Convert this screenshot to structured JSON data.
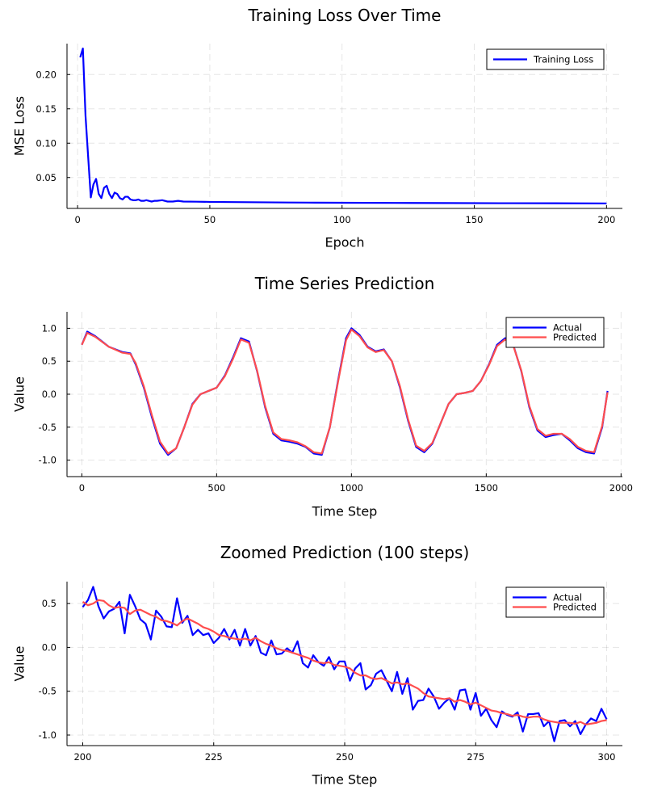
{
  "chart_data": [
    {
      "type": "line",
      "title": "Training Loss Over Time",
      "xlabel": "Epoch",
      "ylabel": "MSE Loss",
      "xlim": [
        -4,
        206
      ],
      "ylim": [
        0.005,
        0.245
      ],
      "xticks": [
        0,
        50,
        100,
        150,
        200
      ],
      "xtick_labels": [
        "0",
        "50",
        "100",
        "150",
        "200"
      ],
      "yticks": [
        0.05,
        0.1,
        0.15,
        0.2
      ],
      "ytick_labels": [
        "0.05",
        "0.10",
        "0.15",
        "0.20"
      ],
      "grid": true,
      "legend_position": "top-right",
      "series": [
        {
          "name": "Training Loss",
          "color": "#0000ff",
          "x": [
            1,
            2,
            3,
            4,
            5,
            6,
            7,
            8,
            9,
            10,
            11,
            12,
            13,
            14,
            15,
            16,
            17,
            18,
            19,
            20,
            21,
            22,
            23,
            24,
            25,
            26,
            27,
            28,
            29,
            30,
            32,
            34,
            36,
            38,
            40,
            45,
            50,
            60,
            70,
            80,
            90,
            100,
            120,
            140,
            160,
            180,
            200
          ],
          "y": [
            0.225,
            0.238,
            0.14,
            0.08,
            0.021,
            0.04,
            0.048,
            0.026,
            0.02,
            0.035,
            0.038,
            0.026,
            0.02,
            0.028,
            0.026,
            0.02,
            0.018,
            0.022,
            0.022,
            0.018,
            0.017,
            0.017,
            0.018,
            0.016,
            0.016,
            0.017,
            0.016,
            0.015,
            0.016,
            0.016,
            0.017,
            0.015,
            0.015,
            0.016,
            0.015,
            0.0148,
            0.0145,
            0.0142,
            0.0139,
            0.0136,
            0.0134,
            0.0132,
            0.013,
            0.0128,
            0.0126,
            0.0125,
            0.0123
          ]
        }
      ]
    },
    {
      "type": "line",
      "title": "Time Series Prediction",
      "xlabel": "Time Step",
      "ylabel": "Value",
      "xlim": [
        -55,
        2005
      ],
      "ylim": [
        -1.25,
        1.25
      ],
      "xticks": [
        0,
        500,
        1000,
        1500,
        2000
      ],
      "xtick_labels": [
        "0",
        "500",
        "1000",
        "1500",
        "2000"
      ],
      "yticks": [
        -1.0,
        -0.5,
        0.0,
        0.5,
        1.0
      ],
      "ytick_labels": [
        "-1.0",
        "-0.5",
        "0.0",
        "0.5",
        "1.0"
      ],
      "grid": true,
      "legend_position": "top-right",
      "series": [
        {
          "name": "Actual",
          "color": "#0000ff",
          "x": [
            0,
            20,
            50,
            100,
            150,
            180,
            200,
            230,
            260,
            290,
            320,
            350,
            380,
            410,
            440,
            470,
            500,
            530,
            560,
            590,
            620,
            650,
            680,
            710,
            740,
            770,
            800,
            830,
            860,
            890,
            920,
            950,
            980,
            1000,
            1030,
            1060,
            1090,
            1120,
            1150,
            1180,
            1210,
            1240,
            1270,
            1300,
            1330,
            1360,
            1390,
            1420,
            1450,
            1480,
            1510,
            1540,
            1570,
            1600,
            1630,
            1660,
            1690,
            1720,
            1750,
            1780,
            1810,
            1840,
            1870,
            1900,
            1930,
            1950
          ],
          "y": [
            0.75,
            0.95,
            0.88,
            0.72,
            0.64,
            0.62,
            0.45,
            0.1,
            -0.35,
            -0.75,
            -0.92,
            -0.82,
            -0.5,
            -0.15,
            0.0,
            0.05,
            0.1,
            0.28,
            0.55,
            0.85,
            0.8,
            0.35,
            -0.2,
            -0.6,
            -0.7,
            -0.72,
            -0.75,
            -0.8,
            -0.9,
            -0.92,
            -0.5,
            0.2,
            0.85,
            1.0,
            0.9,
            0.72,
            0.65,
            0.68,
            0.5,
            0.1,
            -0.4,
            -0.8,
            -0.88,
            -0.75,
            -0.45,
            -0.15,
            0.0,
            0.02,
            0.05,
            0.2,
            0.45,
            0.75,
            0.85,
            0.75,
            0.35,
            -0.2,
            -0.55,
            -0.65,
            -0.62,
            -0.6,
            -0.7,
            -0.82,
            -0.88,
            -0.9,
            -0.5,
            0.05
          ]
        },
        {
          "name": "Predicted",
          "color": "#ff4d4d",
          "x": [
            0,
            20,
            50,
            100,
            150,
            180,
            200,
            230,
            260,
            290,
            320,
            350,
            380,
            410,
            440,
            470,
            500,
            530,
            560,
            590,
            620,
            650,
            680,
            710,
            740,
            770,
            800,
            830,
            860,
            890,
            920,
            950,
            980,
            1000,
            1030,
            1060,
            1090,
            1120,
            1150,
            1180,
            1210,
            1240,
            1270,
            1300,
            1330,
            1360,
            1390,
            1420,
            1450,
            1480,
            1510,
            1540,
            1570,
            1600,
            1630,
            1660,
            1690,
            1720,
            1750,
            1780,
            1810,
            1840,
            1870,
            1900,
            1930,
            1950
          ],
          "y": [
            0.75,
            0.93,
            0.87,
            0.72,
            0.63,
            0.61,
            0.47,
            0.12,
            -0.32,
            -0.72,
            -0.9,
            -0.82,
            -0.5,
            -0.16,
            0.0,
            0.05,
            0.1,
            0.27,
            0.53,
            0.83,
            0.78,
            0.36,
            -0.18,
            -0.58,
            -0.68,
            -0.7,
            -0.73,
            -0.79,
            -0.88,
            -0.9,
            -0.5,
            0.18,
            0.82,
            0.98,
            0.88,
            0.71,
            0.64,
            0.67,
            0.5,
            0.12,
            -0.38,
            -0.78,
            -0.86,
            -0.74,
            -0.45,
            -0.15,
            0.0,
            0.02,
            0.05,
            0.2,
            0.44,
            0.73,
            0.83,
            0.74,
            0.36,
            -0.18,
            -0.53,
            -0.63,
            -0.6,
            -0.6,
            -0.68,
            -0.8,
            -0.86,
            -0.88,
            -0.48,
            0.03
          ]
        }
      ]
    },
    {
      "type": "line",
      "title": "Zoomed Prediction (100 steps)",
      "xlabel": "Time Step",
      "ylabel": "Value",
      "xlim": [
        197,
        303
      ],
      "ylim": [
        -1.12,
        0.75
      ],
      "xticks": [
        200,
        225,
        250,
        275,
        300
      ],
      "xtick_labels": [
        "200",
        "225",
        "250",
        "275",
        "300"
      ],
      "yticks": [
        -1.0,
        -0.5,
        0.0,
        0.5
      ],
      "ytick_labels": [
        "-1.0",
        "-0.5",
        "0.0",
        "0.5"
      ],
      "grid": true,
      "legend_position": "top-right",
      "series": [
        {
          "name": "Actual",
          "color": "#0000ff",
          "x": [
            200,
            201,
            202,
            203,
            204,
            205,
            206,
            207,
            208,
            209,
            210,
            211,
            212,
            213,
            214,
            215,
            216,
            217,
            218,
            219,
            220,
            221,
            222,
            223,
            224,
            225,
            226,
            227,
            228,
            229,
            230,
            231,
            232,
            233,
            234,
            235,
            236,
            237,
            238,
            239,
            240,
            241,
            242,
            243,
            244,
            245,
            246,
            247,
            248,
            249,
            250,
            251,
            252,
            253,
            254,
            255,
            256,
            257,
            258,
            259,
            260,
            261,
            262,
            263,
            264,
            265,
            266,
            267,
            268,
            269,
            270,
            271,
            272,
            273,
            274,
            275,
            276,
            277,
            278,
            279,
            280,
            281,
            282,
            283,
            284,
            285,
            286,
            287,
            288,
            289,
            290,
            291,
            292,
            293,
            294,
            295,
            296,
            297,
            298,
            299,
            300
          ],
          "y": [
            0.46,
            0.54,
            0.69,
            0.47,
            0.33,
            0.41,
            0.44,
            0.52,
            0.16,
            0.6,
            0.47,
            0.32,
            0.27,
            0.09,
            0.42,
            0.35,
            0.24,
            0.23,
            0.56,
            0.28,
            0.36,
            0.14,
            0.2,
            0.14,
            0.16,
            0.05,
            0.11,
            0.21,
            0.09,
            0.2,
            0.02,
            0.21,
            0.02,
            0.13,
            -0.06,
            -0.09,
            0.08,
            -0.08,
            -0.07,
            -0.01,
            -0.06,
            0.07,
            -0.18,
            -0.23,
            -0.09,
            -0.17,
            -0.21,
            -0.11,
            -0.25,
            -0.16,
            -0.16,
            -0.38,
            -0.24,
            -0.18,
            -0.48,
            -0.43,
            -0.3,
            -0.26,
            -0.38,
            -0.5,
            -0.28,
            -0.53,
            -0.35,
            -0.71,
            -0.61,
            -0.6,
            -0.47,
            -0.56,
            -0.7,
            -0.63,
            -0.58,
            -0.71,
            -0.49,
            -0.48,
            -0.71,
            -0.52,
            -0.78,
            -0.7,
            -0.83,
            -0.91,
            -0.73,
            -0.77,
            -0.79,
            -0.74,
            -0.96,
            -0.76,
            -0.76,
            -0.75,
            -0.9,
            -0.84,
            -1.07,
            -0.84,
            -0.83,
            -0.9,
            -0.84,
            -0.99,
            -0.88,
            -0.81,
            -0.84,
            -0.7,
            -0.82
          ]
        },
        {
          "name": "Predicted",
          "color": "#ff4d4d",
          "x": [
            200,
            201,
            202,
            203,
            204,
            205,
            206,
            207,
            208,
            209,
            210,
            211,
            212,
            213,
            214,
            215,
            216,
            217,
            218,
            219,
            220,
            221,
            222,
            223,
            224,
            225,
            226,
            227,
            228,
            229,
            230,
            231,
            232,
            233,
            234,
            235,
            236,
            237,
            238,
            239,
            240,
            241,
            242,
            243,
            244,
            245,
            246,
            247,
            248,
            249,
            250,
            251,
            252,
            253,
            254,
            255,
            256,
            257,
            258,
            259,
            260,
            261,
            262,
            263,
            264,
            265,
            266,
            267,
            268,
            269,
            270,
            271,
            272,
            273,
            274,
            275,
            276,
            277,
            278,
            279,
            280,
            281,
            282,
            283,
            284,
            285,
            286,
            287,
            288,
            289,
            290,
            291,
            292,
            293,
            294,
            295,
            296,
            297,
            298,
            299,
            300
          ],
          "y": [
            0.52,
            0.48,
            0.5,
            0.54,
            0.53,
            0.48,
            0.45,
            0.46,
            0.45,
            0.38,
            0.42,
            0.43,
            0.4,
            0.37,
            0.35,
            0.31,
            0.3,
            0.28,
            0.25,
            0.3,
            0.33,
            0.3,
            0.27,
            0.23,
            0.21,
            0.18,
            0.14,
            0.13,
            0.11,
            0.1,
            0.09,
            0.1,
            0.08,
            0.11,
            0.07,
            0.04,
            0.02,
            -0.01,
            -0.03,
            -0.04,
            -0.06,
            -0.08,
            -0.1,
            -0.12,
            -0.15,
            -0.17,
            -0.18,
            -0.17,
            -0.2,
            -0.21,
            -0.22,
            -0.24,
            -0.29,
            -0.32,
            -0.32,
            -0.35,
            -0.36,
            -0.35,
            -0.38,
            -0.41,
            -0.4,
            -0.42,
            -0.41,
            -0.44,
            -0.47,
            -0.52,
            -0.56,
            -0.57,
            -0.58,
            -0.59,
            -0.58,
            -0.62,
            -0.6,
            -0.62,
            -0.65,
            -0.63,
            -0.66,
            -0.69,
            -0.72,
            -0.73,
            -0.75,
            -0.76,
            -0.78,
            -0.77,
            -0.79,
            -0.8,
            -0.79,
            -0.79,
            -0.82,
            -0.84,
            -0.85,
            -0.86,
            -0.86,
            -0.86,
            -0.87,
            -0.85,
            -0.88,
            -0.87,
            -0.86,
            -0.84,
            -0.83
          ]
        }
      ]
    }
  ]
}
